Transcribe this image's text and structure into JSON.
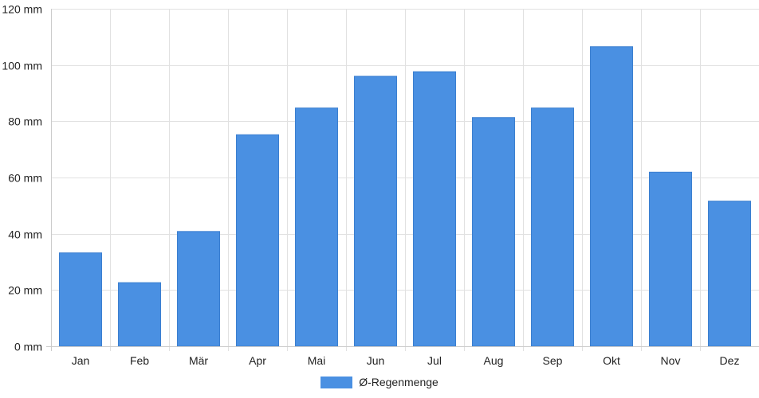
{
  "chart_data": {
    "type": "bar",
    "categories": [
      "Jan",
      "Feb",
      "Mär",
      "Apr",
      "Mai",
      "Jun",
      "Jul",
      "Aug",
      "Sep",
      "Okt",
      "Nov",
      "Dez"
    ],
    "series": [
      {
        "name": "Ø-Regenmenge",
        "values": [
          33.2,
          22.6,
          40.8,
          75.2,
          84.7,
          96.0,
          97.6,
          81.3,
          84.7,
          106.5,
          61.9,
          51.6
        ],
        "color": "#4a90e2"
      }
    ],
    "ylim": [
      0,
      120
    ],
    "y_ticks": [
      0,
      20,
      40,
      60,
      80,
      100,
      120
    ],
    "y_tick_labels": [
      "0 mm",
      "20 mm",
      "40 mm",
      "60 mm",
      "80 mm",
      "100 mm",
      "120 mm"
    ],
    "grid": true,
    "legend_position": "bottom-center",
    "colors": {
      "grid": "#e1e1e1",
      "axis": "#cccccc",
      "bar_border": "#3b7fd0"
    }
  }
}
